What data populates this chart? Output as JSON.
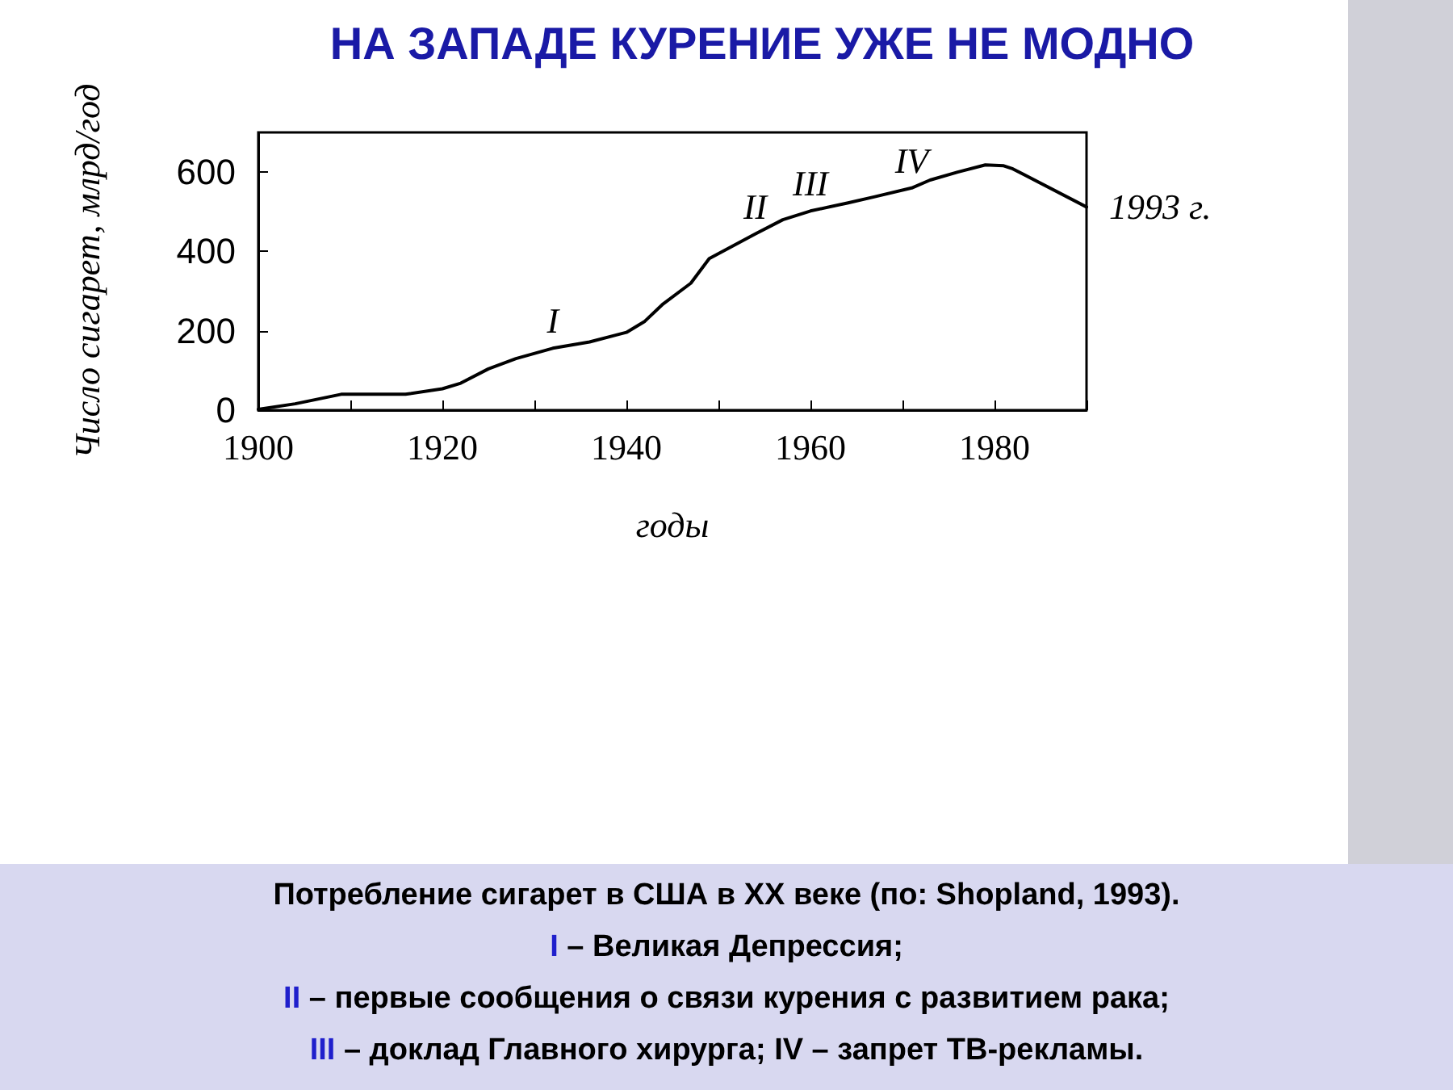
{
  "chart_data": {
    "type": "line",
    "title": "НА ЗАПАДЕ КУРЕНИЕ УЖЕ НЕ МОДНО",
    "xlabel": "годы",
    "ylabel": "Число сигарет, млрд/год",
    "x": [
      1900,
      1904,
      1909,
      1916,
      1920,
      1922,
      1925,
      1928,
      1932,
      1936,
      1940,
      1942,
      1944,
      1947,
      1949,
      1954,
      1957,
      1960,
      1964,
      1967,
      1971,
      1973,
      1976,
      1979,
      1981,
      1982,
      1990
    ],
    "series": [
      {
        "color": "#000000",
        "values": [
          2,
          16,
          40,
          40,
          54,
          68,
          104,
          130,
          156,
          172,
          196,
          224,
          268,
          320,
          382,
          444,
          480,
          502,
          522,
          538,
          560,
          580,
          600,
          618,
          616,
          608,
          512
        ]
      }
    ],
    "xlim": [
      1900,
      1990
    ],
    "xticks": [
      1900,
      {
        "value": 1910,
        "label": null
      },
      1920,
      {
        "value": 1930,
        "label": null
      },
      1940,
      {
        "value": 1950,
        "label": null
      },
      1960,
      {
        "value": 1970,
        "label": null
      },
      1980,
      {
        "value": 1990,
        "label": null
      }
    ],
    "ylim": [
      0,
      700
    ],
    "yticks": [
      0,
      200,
      400,
      600
    ],
    "grid": false,
    "marker": "none",
    "line_style": "solid",
    "annotations": [
      {
        "text": "I",
        "x": 1932,
        "y": 156
      },
      {
        "text": "II",
        "x": 1954,
        "y": 444
      },
      {
        "text": "III",
        "x": 1960,
        "y": 502
      },
      {
        "text": "IV",
        "x": 1971,
        "y": 560
      },
      {
        "text": "1993 г.",
        "x": 1990,
        "y": 512
      },
      "Потребление сигарет в США в XX веке (по: Shopland, 1993).",
      "I – Великая Депрессия;",
      "II – первые сообщения о связи курения с развитием рака;",
      "III – доклад Главного хирурга;  IV – запрет ТВ-рекламы."
    ]
  }
}
